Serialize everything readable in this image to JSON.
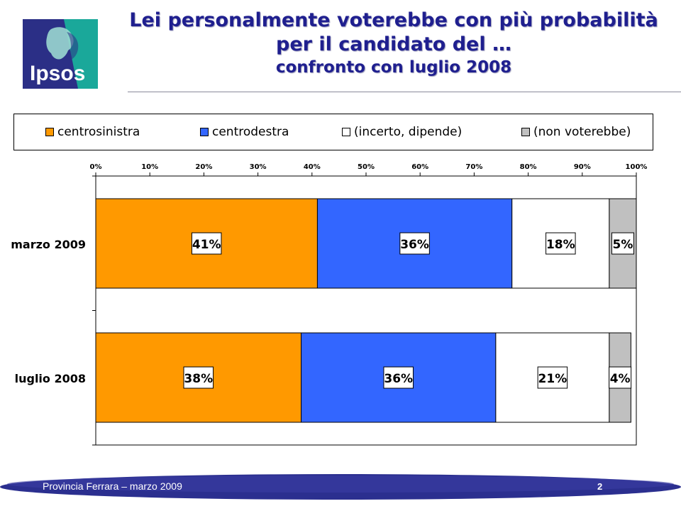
{
  "logo": {
    "text": "Ipsos",
    "colors": {
      "navy": "#2b2f86",
      "teal": "#1aa89a"
    }
  },
  "title": {
    "line1": "Lei personalmente voterebbe con più probabilità",
    "line2": "per il candidato del …",
    "line3": "confronto con luglio 2008"
  },
  "footer": {
    "text": "Provincia Ferrara – marzo 2009",
    "page": "2"
  },
  "chart_data": {
    "type": "bar",
    "orientation": "horizontal",
    "stacked": true,
    "percent_scale": true,
    "categories": [
      "marzo 2009",
      "luglio 2008"
    ],
    "series": [
      {
        "name": "centrosinistra",
        "color": "#ff9900",
        "values": [
          41,
          38
        ],
        "labels": [
          "41%",
          "38%"
        ]
      },
      {
        "name": "centrodestra",
        "color": "#3366ff",
        "values": [
          36,
          36
        ],
        "labels": [
          "36%",
          "36%"
        ]
      },
      {
        "name": "(incerto, dipende)",
        "color": "#ffffff",
        "values": [
          18,
          21
        ],
        "labels": [
          "18%",
          "21%"
        ]
      },
      {
        "name": "(non voterebbe)",
        "color": "#c0c0c0",
        "values": [
          5,
          4
        ],
        "labels": [
          "5%",
          "4%"
        ]
      }
    ],
    "xlim": [
      0,
      100
    ],
    "xticks": [
      "0%",
      "10%",
      "20%",
      "30%",
      "40%",
      "50%",
      "60%",
      "70%",
      "80%",
      "90%",
      "100%"
    ],
    "legend_position": "top",
    "axis_position": "top",
    "grid": false
  }
}
